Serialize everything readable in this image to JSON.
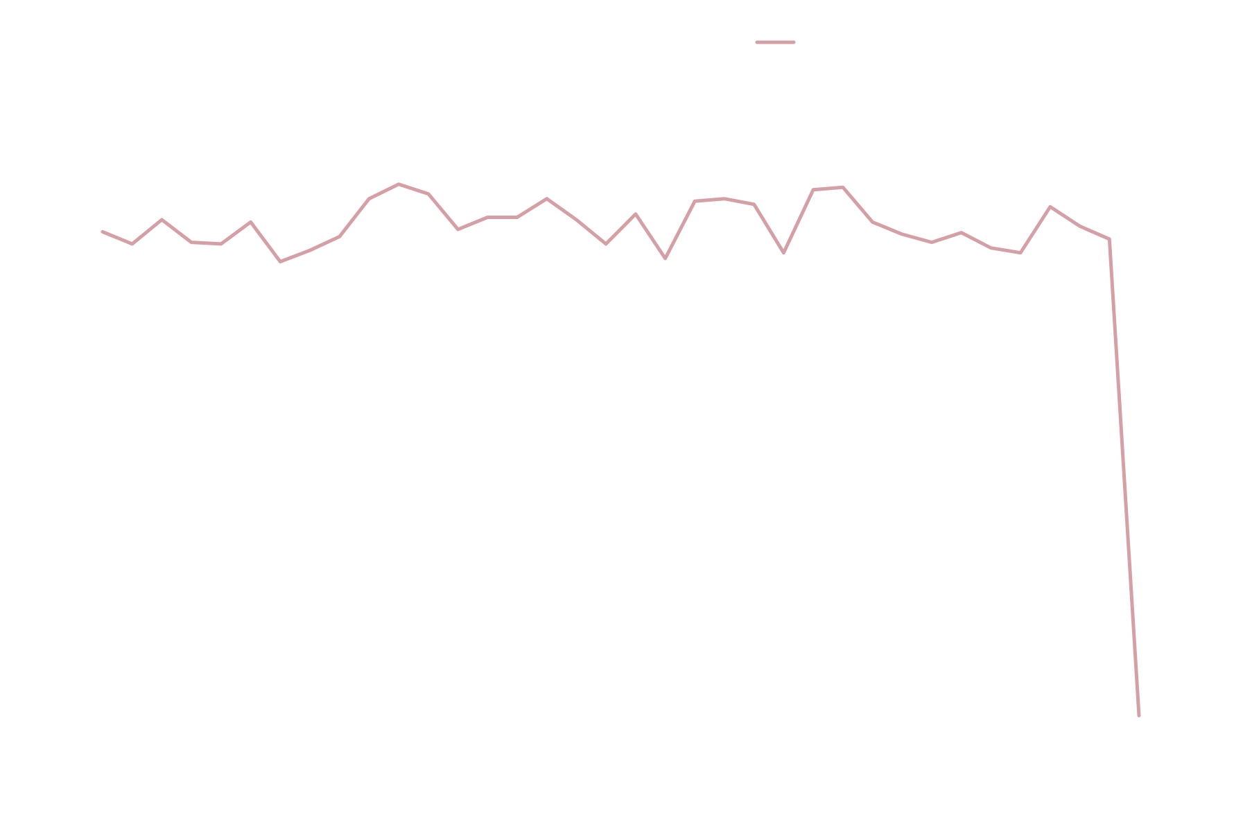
{
  "chart_data": {
    "type": "line",
    "categories": [
      null,
      null,
      null,
      null,
      null,
      null,
      null,
      null,
      null,
      null,
      null,
      null,
      null,
      null,
      null,
      null,
      null,
      null,
      null,
      null,
      null,
      null,
      null,
      null,
      null,
      null,
      null,
      null,
      null,
      null,
      null,
      null,
      null,
      null,
      null,
      null
    ],
    "values": [
      66.3,
      64.8,
      67.8,
      65,
      64.8,
      67.5,
      62.6,
      64,
      65.7,
      70.4,
      72.2,
      71,
      66.6,
      68.1,
      68.1,
      70.4,
      67.8,
      64.8,
      68.5,
      63,
      70.1,
      70.4,
      69.7,
      63.7,
      71.5,
      71.8,
      67.5,
      66,
      65,
      66.2,
      64.3,
      63.7,
      69.4,
      67,
      65.4,
      6.4
    ],
    "color": "#d4a0a6",
    "ylim": [
      0,
      95
    ],
    "legend": true
  }
}
